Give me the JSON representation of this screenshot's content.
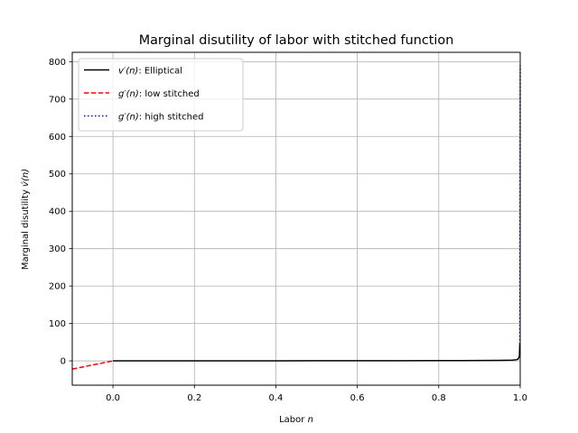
{
  "chart_data": {
    "type": "line",
    "title": "Marginal disutility of labor with stitched function",
    "xlabel": "Labor",
    "xlabel_var": "n",
    "ylabel": "Marginal disutility",
    "ylabel_var": "v́(n)",
    "xlim": [
      -0.1,
      1.0
    ],
    "ylim": [
      -65,
      825
    ],
    "xticks": [
      0.0,
      0.2,
      0.4,
      0.6,
      0.8,
      1.0
    ],
    "xtick_labels": [
      "0.0",
      "0.2",
      "0.4",
      "0.6",
      "0.8",
      "1.0"
    ],
    "yticks": [
      0,
      100,
      200,
      300,
      400,
      500,
      600,
      700,
      800
    ],
    "ytick_labels": [
      "0",
      "100",
      "200",
      "300",
      "400",
      "500",
      "600",
      "700",
      "800"
    ],
    "grid": true,
    "legend_position": "top-left",
    "series": [
      {
        "name_var": "v′(n)",
        "name": ": Elliptical",
        "color": "#000000",
        "style": "solid",
        "x": [
          0.0,
          0.1,
          0.2,
          0.3,
          0.4,
          0.5,
          0.6,
          0.7,
          0.8,
          0.9,
          0.95,
          0.98,
          0.99,
          0.995,
          0.998,
          0.999
        ],
        "y": [
          0.0,
          0.05,
          0.1,
          0.15,
          0.2,
          0.29,
          0.38,
          0.5,
          0.7,
          1.0,
          1.4,
          2.0,
          3.0,
          5.0,
          12.0,
          45.0
        ]
      },
      {
        "name_var": "g′(n)",
        "name": ": low stitched",
        "color": "#ff0000",
        "style": "dashed",
        "x": [
          -0.1,
          0.0
        ],
        "y": [
          -22.0,
          0.0
        ]
      },
      {
        "name_var": "g′(n)",
        "name": ": high stitched",
        "color": "#0000ff",
        "style": "dotted",
        "x": [
          0.999,
          0.9995,
          1.0
        ],
        "y": [
          45.0,
          300.0,
          790.0
        ]
      }
    ]
  }
}
